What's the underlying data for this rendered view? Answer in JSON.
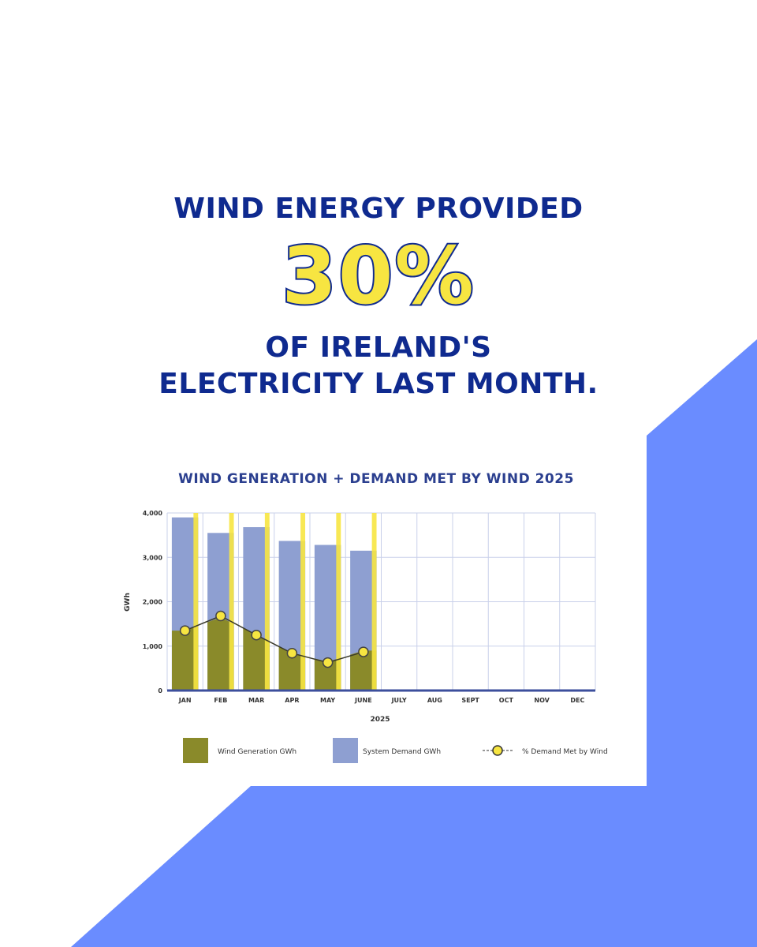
{
  "headline": {
    "line1": "WIND ENERGY PROVIDED",
    "percent": "30%",
    "line2": "OF IRELAND'S",
    "line3": "ELECTRICITY LAST MONTH."
  },
  "colors": {
    "navy": "#0f2a8f",
    "accent_blue": "#6a8cff",
    "yellow": "#f7e541",
    "wind_fill": "#8a8a2a",
    "demand_fill": "#8e9fd1"
  },
  "chart_data": {
    "type": "bar",
    "title": "WIND GENERATION + DEMAND MET BY WIND 2025",
    "xlabel": "2025",
    "ylabel": "GWh",
    "ylim": [
      0,
      4000
    ],
    "yticks": [
      "4,000",
      "3,000",
      "2,000",
      "1,000",
      "0"
    ],
    "categories": [
      "JAN",
      "FEB",
      "MAR",
      "APR",
      "MAY",
      "JUNE",
      "JULY",
      "AUG",
      "SEPT",
      "OCT",
      "NOV",
      "DEC"
    ],
    "grid": true,
    "legend_position": "bottom",
    "series": [
      {
        "name": "Wind Generation GWh",
        "kind": "area",
        "values": [
          1350,
          1650,
          1250,
          850,
          650,
          900,
          null,
          null,
          null,
          null,
          null,
          null
        ]
      },
      {
        "name": "System Demand GWh",
        "kind": "bar",
        "values": [
          3900,
          3550,
          3680,
          3370,
          3280,
          3150,
          null,
          null,
          null,
          null,
          null,
          null
        ]
      },
      {
        "name": "% Demand Met by Wind",
        "kind": "line-markers",
        "values": [
          1350,
          1680,
          1250,
          840,
          630,
          870,
          null,
          null,
          null,
          null,
          null,
          null
        ]
      }
    ]
  }
}
